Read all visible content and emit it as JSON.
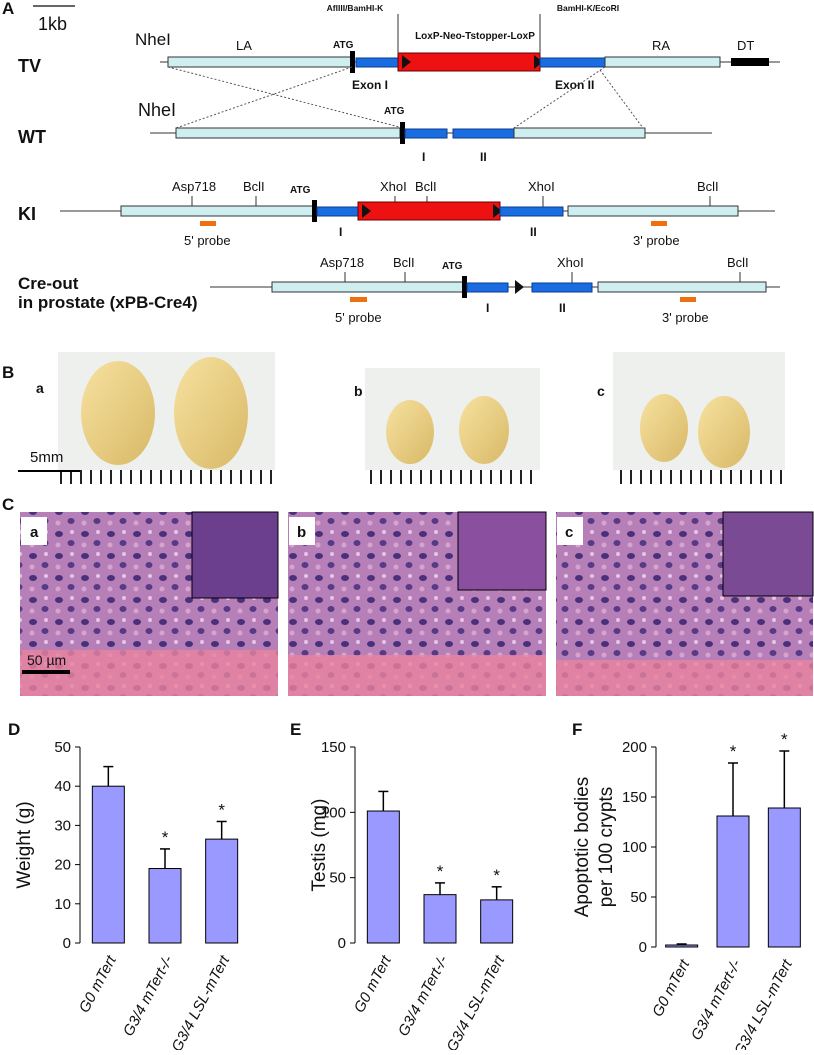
{
  "panel_a": {
    "label": "A",
    "scale": "1kb",
    "tv": {
      "name": "TV",
      "site": "NheI",
      "la": "LA",
      "atg": "ATG",
      "site5": "AflIII/BamHI-K",
      "cassette": "LoxP-Neo-Tstopper-LoxP",
      "site3": "BamHI-K/EcoRI",
      "ra": "RA",
      "dt": "DT",
      "exon1": "Exon I",
      "exon2": "Exon II"
    },
    "wt": {
      "name": "WT",
      "site": "NheI",
      "atg": "ATG",
      "exon1": "I",
      "exon2": "II"
    },
    "ki": {
      "name": "KI",
      "sites": [
        "Asp718",
        "BclI",
        "XhoI",
        "BclI",
        "XhoI",
        "BclI"
      ],
      "atg": "ATG",
      "exon1": "I",
      "exon2": "II",
      "probe5": "5' probe",
      "probe3": "3' probe"
    },
    "cre": {
      "name": [
        "Cre-out",
        "in prostate (xPB-Cre4)"
      ],
      "sites": [
        "Asp718",
        "BclI",
        "XhoI",
        "BclI"
      ],
      "atg": "ATG",
      "exon1": "I",
      "exon2": "II",
      "probe5": "5' probe",
      "probe3": "3' probe"
    }
  },
  "panel_b": {
    "label": "B",
    "sublabels": [
      "a",
      "b",
      "c"
    ],
    "scale": "5mm"
  },
  "panel_c": {
    "label": "C",
    "sublabels": [
      "a",
      "b",
      "c"
    ],
    "scale": "50 µm"
  },
  "chart_data": [
    {
      "type": "bar",
      "panel": "D",
      "ylabel": [
        "Weight (g)"
      ],
      "categories": [
        "G0 mTert",
        "G3/4 mTert-/-",
        "G3/4 LSL-mTert"
      ],
      "values": [
        40,
        19,
        26.5
      ],
      "errors": [
        5,
        5,
        4.5
      ],
      "annotations": [
        null,
        "*",
        "*"
      ],
      "color": "#9999ff",
      "ylim": [
        0,
        50
      ],
      "yticks": [
        0,
        10,
        20,
        30,
        40,
        50
      ]
    },
    {
      "type": "bar",
      "panel": "E",
      "ylabel": [
        "Testis (mg)"
      ],
      "categories": [
        "G0 mTert",
        "G3/4 mTert-/-",
        "G3/4 LSL-mTert"
      ],
      "values": [
        101,
        37,
        33
      ],
      "errors": [
        15,
        9,
        10
      ],
      "annotations": [
        null,
        "*",
        "*"
      ],
      "color": "#9999ff",
      "ylim": [
        0,
        150
      ],
      "yticks": [
        0,
        50,
        100,
        150
      ]
    },
    {
      "type": "bar",
      "panel": "F",
      "ylabel": [
        "Apoptotic bodies",
        "per 100 crypts"
      ],
      "categories": [
        "G0 mTert",
        "G3/4 mTert-/-",
        "G3/4 LSL-mTert"
      ],
      "values": [
        2,
        131,
        139
      ],
      "errors": [
        1,
        53,
        57
      ],
      "annotations": [
        null,
        "*",
        "*"
      ],
      "color": "#9999ff",
      "ylim": [
        0,
        200
      ],
      "yticks": [
        0,
        50,
        100,
        150,
        200
      ]
    }
  ]
}
